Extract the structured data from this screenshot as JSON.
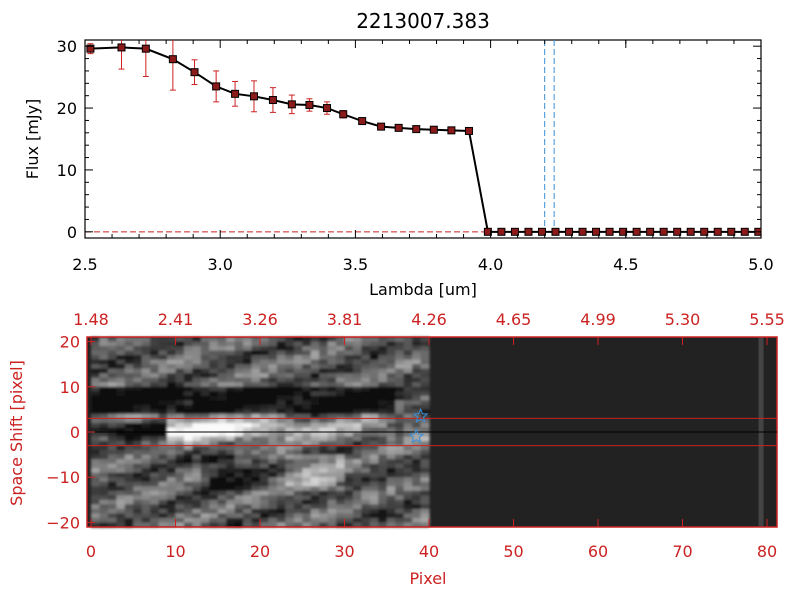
{
  "colors": {
    "axis_top": "#000000",
    "axis_bottom": "#cc2222",
    "data_marker": "#8b1a1a",
    "error_bar": "#cc2222",
    "vline": "#3a8fd6",
    "hline": "#cc2222",
    "star": "#3a8fd6",
    "flat_region": "#222222"
  },
  "chart_data": [
    {
      "type": "line",
      "title": "2213007.383",
      "xlabel": "Lambda [um]",
      "ylabel": "Flux [mJy]",
      "xlim": [
        2.5,
        5.0
      ],
      "ylim": [
        -1,
        31
      ],
      "xticks": [
        2.5,
        3.0,
        3.5,
        4.0,
        4.5,
        5.0
      ],
      "xtick_labels": [
        "2.5",
        "3.0",
        "3.5",
        "4.0",
        "4.5",
        "5.0"
      ],
      "yticks": [
        0,
        10,
        20,
        30
      ],
      "ytick_labels": [
        "0",
        "10",
        "20",
        "30"
      ],
      "vlines": [
        4.2,
        4.235
      ],
      "hline": 0,
      "x": [
        2.52,
        2.635,
        2.725,
        2.825,
        2.905,
        2.985,
        3.055,
        3.125,
        3.195,
        3.265,
        3.33,
        3.395,
        3.455,
        3.525,
        3.595,
        3.66,
        3.725,
        3.79,
        3.855,
        3.92,
        3.99,
        4.04,
        4.09,
        4.14,
        4.19,
        4.24,
        4.29,
        4.34,
        4.39,
        4.44,
        4.49,
        4.54,
        4.59,
        4.64,
        4.69,
        4.74,
        4.79,
        4.84,
        4.89,
        4.94,
        4.99
      ],
      "y": [
        29.6,
        29.8,
        29.6,
        27.9,
        25.8,
        23.5,
        22.3,
        21.9,
        21.3,
        20.6,
        20.5,
        20.0,
        19.0,
        17.9,
        17.0,
        16.8,
        16.6,
        16.5,
        16.4,
        16.3,
        0,
        0,
        0,
        0,
        0,
        0,
        0,
        0,
        0,
        0,
        0,
        0,
        0,
        0,
        0,
        0,
        0,
        0,
        0,
        0,
        0
      ],
      "yerr": [
        0.8,
        3.5,
        4.5,
        5.0,
        2.0,
        2.5,
        2.0,
        2.5,
        2.0,
        1.5,
        1.0,
        1.0,
        0.6,
        0.4,
        0.3,
        0.3,
        0.3,
        0.3,
        0.3,
        0.3,
        0,
        0,
        0,
        0,
        0,
        0,
        0,
        0,
        0,
        0,
        0,
        0,
        0,
        0,
        0,
        0,
        0,
        0,
        0,
        0,
        0
      ]
    },
    {
      "type": "heatmap",
      "xlabel": "Pixel",
      "ylabel": "Space Shift [pixel]",
      "xlim": [
        0,
        80
      ],
      "ylim": [
        -21,
        21
      ],
      "xticks": [
        0,
        10,
        20,
        30,
        40,
        50,
        60,
        70,
        80
      ],
      "xtick_labels": [
        "0",
        "10",
        "20",
        "30",
        "40",
        "50",
        "60",
        "70",
        "80"
      ],
      "yticks": [
        -20,
        -10,
        0,
        10,
        20
      ],
      "ytick_labels": [
        "−20",
        "−10",
        "0",
        "10",
        "20"
      ],
      "top_axis_labels": [
        "1.48",
        "2.41",
        "3.26",
        "3.81",
        "4.26",
        "4.65",
        "4.99",
        "5.30",
        "5.55"
      ],
      "data_extent_pixel": 40,
      "hlines": [
        3,
        0,
        -3
      ],
      "stars": [
        {
          "x": 39,
          "y": 3.5
        },
        {
          "x": 38.5,
          "y": -1
        }
      ]
    }
  ]
}
